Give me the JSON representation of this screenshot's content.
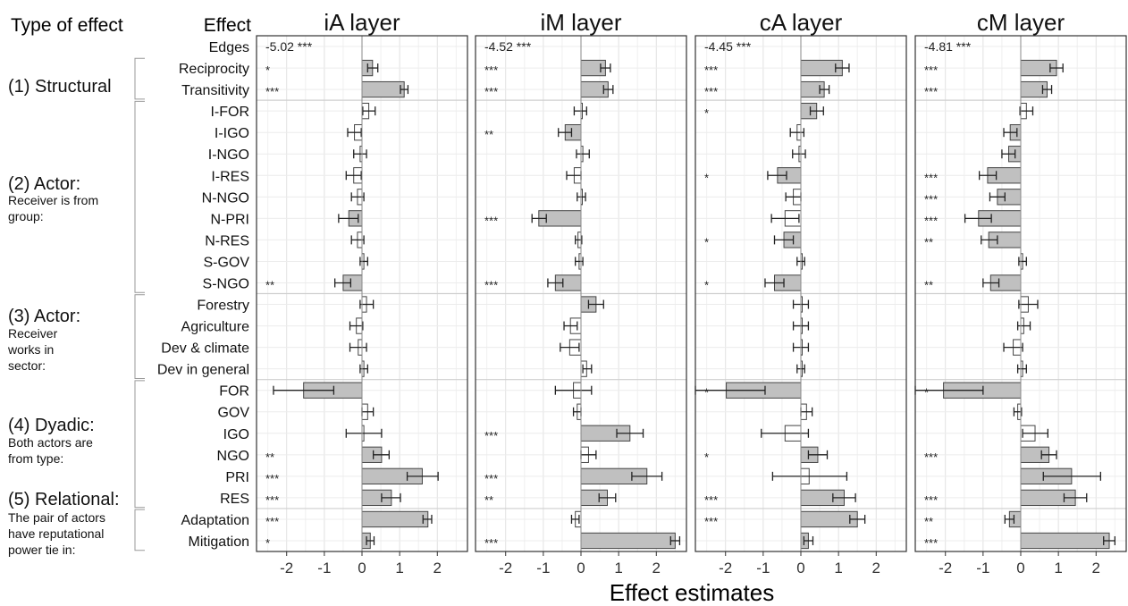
{
  "headers": {
    "type_of_effect": "Type of effect",
    "effect": "Effect"
  },
  "xlabel": "Effect estimates",
  "groups": [
    {
      "label": "(1) Structural",
      "sublines": []
    },
    {
      "label": "(2) Actor:",
      "sublines": [
        "Receiver is from",
        "group:"
      ]
    },
    {
      "label": "(3) Actor:",
      "sublines": [
        "Receiver",
        "works in",
        "sector:"
      ]
    },
    {
      "label": "(4) Dyadic:",
      "sublines": [
        "Both actors are",
        "from type:"
      ]
    },
    {
      "label": "(5) Relational:",
      "sublines": [
        "The pair of actors",
        "have reputational",
        "power tie in:"
      ]
    }
  ],
  "effects": [
    "Edges",
    "Reciprocity",
    "Transitivity",
    "I-FOR",
    "I-IGO",
    "I-NGO",
    "I-RES",
    "N-NGO",
    "N-PRI",
    "N-RES",
    "S-GOV",
    "S-NGO",
    "Forestry",
    "Agriculture",
    "Dev & climate",
    "Dev in general",
    "FOR",
    "GOV",
    "IGO",
    "NGO",
    "PRI",
    "RES",
    "Adaptation",
    "Mitigation"
  ],
  "colors": {
    "significant": "#c0c0c0",
    "nonsignificant": "#ffffff",
    "edge": "#444444",
    "grid": "#e6e6e6",
    "panel_border": "#333333"
  },
  "chart_data": [
    {
      "type": "bar",
      "title": "iA layer",
      "xlim": [
        -2.8,
        2.8
      ],
      "xticks": [
        -2,
        -1,
        0,
        1,
        2
      ],
      "edges_estimate": "-5.02",
      "edges_stars": "***",
      "estimates": [
        null,
        0.28,
        1.12,
        0.18,
        -0.2,
        -0.05,
        -0.22,
        -0.12,
        -0.35,
        -0.12,
        0.05,
        -0.5,
        0.12,
        -0.15,
        -0.1,
        0.05,
        -1.55,
        0.15,
        0.05,
        0.52,
        1.6,
        0.78,
        1.75,
        0.22
      ],
      "ci_low": [
        null,
        0.15,
        1.02,
        0.02,
        -0.38,
        -0.22,
        -0.42,
        -0.28,
        -0.62,
        -0.28,
        -0.05,
        -0.72,
        -0.05,
        -0.32,
        -0.32,
        -0.05,
        -2.35,
        0.0,
        -0.42,
        0.3,
        1.2,
        0.52,
        1.62,
        0.12
      ],
      "ci_high": [
        null,
        0.42,
        1.22,
        0.35,
        -0.02,
        0.12,
        -0.02,
        0.05,
        -0.1,
        0.05,
        0.15,
        -0.3,
        0.3,
        0.02,
        0.12,
        0.15,
        -0.75,
        0.3,
        0.52,
        0.72,
        2.02,
        1.02,
        1.85,
        0.32
      ],
      "significant": [
        null,
        true,
        true,
        false,
        false,
        false,
        false,
        false,
        true,
        false,
        false,
        true,
        false,
        false,
        false,
        false,
        true,
        false,
        false,
        true,
        true,
        true,
        true,
        true
      ],
      "stars": [
        "",
        "*",
        "***",
        "",
        "",
        "",
        "",
        "",
        "",
        "",
        "",
        "**",
        "",
        "",
        "",
        "",
        "",
        "",
        "",
        "**",
        "***",
        "***",
        "***",
        "*"
      ]
    },
    {
      "type": "bar",
      "title": "iM layer",
      "xlim": [
        -2.8,
        2.8
      ],
      "xticks": [
        -2,
        -1,
        0,
        1,
        2
      ],
      "edges_estimate": "-4.52",
      "edges_stars": "***",
      "estimates": [
        null,
        0.65,
        0.72,
        0.0,
        -0.42,
        0.05,
        -0.18,
        0.0,
        -1.12,
        -0.08,
        -0.05,
        -0.68,
        0.4,
        -0.28,
        -0.3,
        0.15,
        -0.2,
        -0.1,
        1.3,
        0.2,
        1.75,
        0.7,
        -0.15,
        2.5
      ],
      "ci_low": [
        null,
        0.52,
        0.6,
        -0.18,
        -0.6,
        -0.12,
        -0.38,
        -0.1,
        -1.3,
        -0.15,
        -0.15,
        -0.88,
        0.2,
        -0.45,
        -0.55,
        0.05,
        -0.68,
        -0.2,
        0.95,
        0.0,
        1.35,
        0.48,
        -0.25,
        2.38
      ],
      "ci_high": [
        null,
        0.78,
        0.85,
        0.15,
        -0.25,
        0.22,
        0.0,
        0.12,
        -0.92,
        0.02,
        0.05,
        -0.48,
        0.6,
        -0.1,
        -0.05,
        0.28,
        0.28,
        0.0,
        1.65,
        0.4,
        2.15,
        0.92,
        -0.05,
        2.62
      ],
      "significant": [
        null,
        true,
        true,
        false,
        true,
        false,
        false,
        false,
        true,
        false,
        false,
        true,
        true,
        false,
        false,
        false,
        false,
        false,
        true,
        false,
        true,
        true,
        false,
        true
      ],
      "stars": [
        "",
        "***",
        "***",
        "",
        "**",
        "",
        "",
        "",
        "***",
        "",
        "",
        "***",
        "",
        "",
        "",
        "",
        "",
        "",
        "***",
        "",
        "***",
        "**",
        "",
        "***"
      ]
    },
    {
      "type": "bar",
      "title": "cA layer",
      "xlim": [
        -2.8,
        2.8
      ],
      "xticks": [
        -2,
        -1,
        0,
        1,
        2
      ],
      "edges_estimate": "-4.45",
      "edges_stars": "***",
      "estimates": [
        null,
        1.1,
        0.62,
        0.42,
        -0.1,
        -0.05,
        -0.62,
        -0.2,
        -0.42,
        -0.45,
        0.0,
        -0.7,
        0.0,
        0.0,
        0.0,
        0.0,
        -1.98,
        0.15,
        -0.42,
        0.45,
        0.22,
        1.15,
        1.5,
        0.2
      ],
      "ci_low": [
        null,
        0.92,
        0.5,
        0.25,
        -0.28,
        -0.22,
        -0.88,
        -0.4,
        -0.78,
        -0.7,
        -0.1,
        -0.95,
        -0.2,
        -0.2,
        -0.2,
        -0.1,
        -2.95,
        0.0,
        -1.05,
        0.2,
        -0.75,
        0.85,
        1.3,
        0.08
      ],
      "ci_high": [
        null,
        1.28,
        0.75,
        0.6,
        0.08,
        0.12,
        -0.38,
        0.0,
        -0.05,
        -0.2,
        0.1,
        -0.45,
        0.2,
        0.2,
        0.2,
        0.1,
        -0.95,
        0.3,
        0.2,
        0.7,
        1.22,
        1.45,
        1.7,
        0.32
      ],
      "significant": [
        null,
        true,
        true,
        true,
        false,
        false,
        true,
        false,
        false,
        true,
        false,
        true,
        false,
        false,
        false,
        false,
        true,
        false,
        false,
        true,
        false,
        true,
        true,
        true
      ],
      "stars": [
        "",
        "***",
        "***",
        "*",
        "",
        "",
        "*",
        "",
        "",
        "*",
        "",
        "*",
        "",
        "",
        "",
        "",
        "*",
        "",
        "",
        "*",
        "",
        "***",
        "***",
        ""
      ]
    },
    {
      "type": "bar",
      "title": "cM layer",
      "xlim": [
        -2.8,
        2.8
      ],
      "xticks": [
        -2,
        -1,
        0,
        1,
        2
      ],
      "edges_estimate": "-4.81",
      "edges_stars": "***",
      "estimates": [
        null,
        0.95,
        0.7,
        0.15,
        -0.28,
        -0.32,
        -0.88,
        -0.62,
        -1.12,
        -0.85,
        0.05,
        -0.8,
        0.2,
        0.08,
        -0.2,
        0.05,
        -2.05,
        -0.08,
        0.38,
        0.75,
        1.35,
        1.45,
        -0.3,
        2.35
      ],
      "ci_low": [
        null,
        0.78,
        0.58,
        -0.02,
        -0.45,
        -0.5,
        -1.1,
        -0.82,
        -1.48,
        -1.05,
        -0.05,
        -1.0,
        -0.05,
        -0.08,
        -0.45,
        -0.08,
        -3.1,
        -0.18,
        0.05,
        0.55,
        0.6,
        1.15,
        -0.42,
        2.2
      ],
      "ci_high": [
        null,
        1.12,
        0.82,
        0.32,
        -0.1,
        -0.15,
        -0.65,
        -0.42,
        -0.78,
        -0.62,
        0.15,
        -0.58,
        0.45,
        0.25,
        0.05,
        0.15,
        -1.0,
        0.02,
        0.72,
        0.95,
        2.12,
        1.75,
        -0.18,
        2.5
      ],
      "significant": [
        null,
        true,
        true,
        false,
        true,
        true,
        true,
        true,
        true,
        true,
        false,
        true,
        false,
        false,
        false,
        false,
        true,
        false,
        false,
        true,
        true,
        true,
        true,
        true
      ],
      "stars": [
        "",
        "***",
        "***",
        "",
        "",
        "",
        "***",
        "***",
        "***",
        "**",
        "",
        "**",
        "",
        "",
        "",
        "",
        "*",
        "",
        "",
        "***",
        "",
        "***",
        "**",
        "***"
      ]
    }
  ]
}
